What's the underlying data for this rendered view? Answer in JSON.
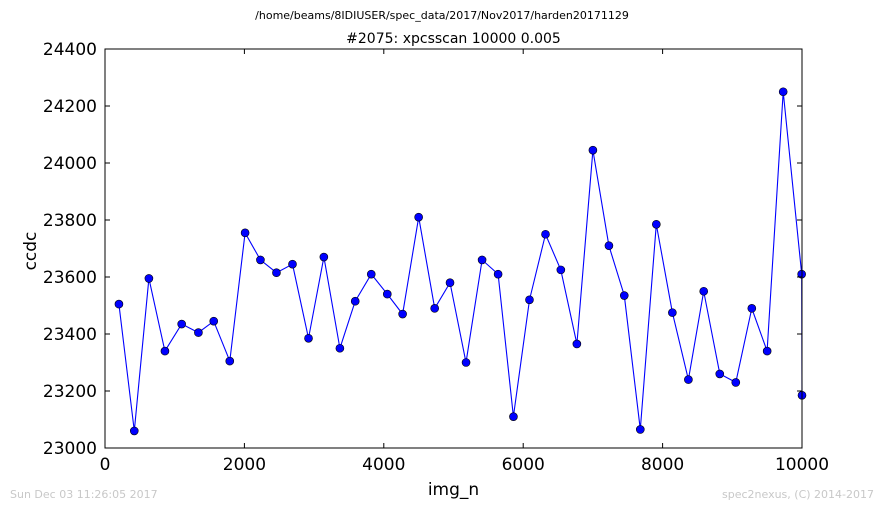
{
  "header": {
    "path": "/home/beams/8IDIUSER/spec_data/2017/Nov2017/harden20171129"
  },
  "footer": {
    "timestamp": "Sun Dec 03 11:26:05 2017",
    "credit": "spec2nexus, (C) 2014-2017"
  },
  "chart_data": {
    "type": "line",
    "title": "#2075: xpcsscan 10000 0.005",
    "xlabel": "img_n",
    "ylabel": "ccdc",
    "xlim": [
      0,
      10000
    ],
    "ylim": [
      23000,
      24400
    ],
    "xticks": [
      0,
      2000,
      4000,
      6000,
      8000,
      10000
    ],
    "yticks": [
      23000,
      23200,
      23400,
      23600,
      23800,
      24000,
      24200,
      24400
    ],
    "grid": false,
    "colors": {
      "line": "#0000ff",
      "marker_fill": "#0000ff",
      "marker_edge": "#000000"
    },
    "series": [
      {
        "marker": "circle",
        "x": [
          200,
          420,
          630,
          860,
          1100,
          1340,
          1560,
          1790,
          2010,
          2230,
          2460,
          2690,
          2920,
          3140,
          3370,
          3590,
          3820,
          4050,
          4270,
          4500,
          4730,
          4950,
          5180,
          5410,
          5640,
          5860,
          6090,
          6320,
          6540,
          6770,
          7000,
          7230,
          7450,
          7680,
          7910,
          8140,
          8370,
          8590,
          8820,
          9050,
          9280,
          9500,
          9730,
          9995,
          10000
        ],
        "y": [
          23505,
          23060,
          23595,
          23340,
          23435,
          23405,
          23445,
          23305,
          23755,
          23660,
          23615,
          23645,
          23385,
          23670,
          23350,
          23515,
          23610,
          23540,
          23470,
          23810,
          23490,
          23580,
          23300,
          23660,
          23610,
          23110,
          23520,
          23750,
          23625,
          23365,
          24045,
          23710,
          23535,
          23065,
          23785,
          23475,
          23240,
          23550,
          23260,
          23230,
          23490,
          23340,
          24250,
          23610,
          23185
        ]
      }
    ]
  }
}
